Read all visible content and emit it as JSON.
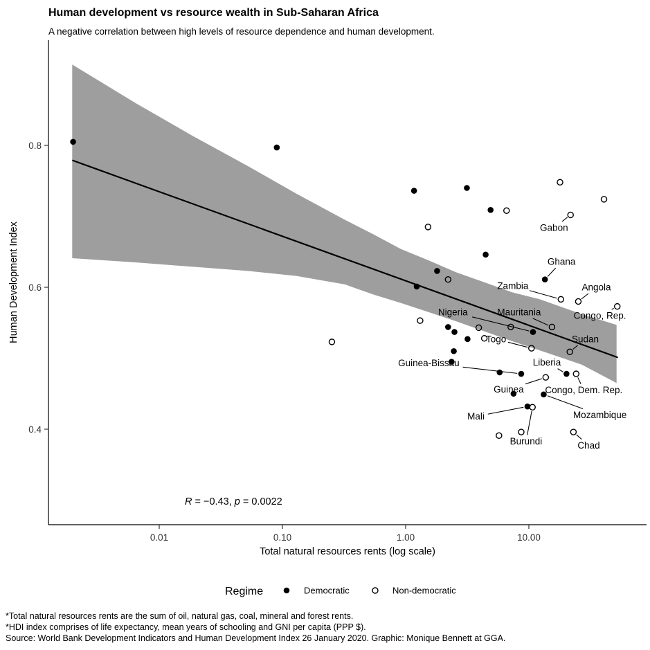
{
  "chart_data": {
    "type": "scatter",
    "title": "Human development vs resource wealth in Sub-Saharan Africa",
    "subtitle": "A negative correlation between high levels of resource dependence and human development.",
    "xlabel": "Total natural resources rents (log scale)",
    "ylabel": "Human Development Index",
    "x_scale": "log10",
    "x_ticks": [
      "0.01",
      "0.10",
      "1.00",
      "10.00"
    ],
    "x_tick_values": [
      0.01,
      0.1,
      1,
      10
    ],
    "y_ticks": [
      "0.8",
      "0.6",
      "0.4"
    ],
    "y_tick_values": [
      0.8,
      0.6,
      0.4
    ],
    "grid": false,
    "annotation": {
      "r_label": "R",
      "r_value": " = −0.43, ",
      "p_label": "p",
      "p_value": " = 0.0022"
    },
    "legend": {
      "title": "Regime",
      "position": "bottom",
      "items": [
        {
          "label": "Democratic",
          "marker": "filled"
        },
        {
          "label": "Non-democratic",
          "marker": "open"
        }
      ]
    },
    "regression": {
      "line": [
        {
          "log_x": -2.706,
          "y": 0.779
        },
        {
          "log_x": 1.723,
          "y": 0.501
        }
      ],
      "band_color": "#9e9e9e",
      "band": [
        {
          "lx": -2.706,
          "hi": 0.914,
          "lo": 0.641
        },
        {
          "lx": -2.186,
          "hi": 0.859,
          "lo": 0.635
        },
        {
          "lx": -1.734,
          "hi": 0.814,
          "lo": 0.629
        },
        {
          "lx": -1.282,
          "hi": 0.771,
          "lo": 0.623
        },
        {
          "lx": -0.887,
          "hi": 0.732,
          "lo": 0.616
        },
        {
          "lx": -0.492,
          "hi": 0.695,
          "lo": 0.604
        },
        {
          "lx": -0.266,
          "hi": 0.675,
          "lo": 0.59
        },
        {
          "lx": -0.04,
          "hi": 0.654,
          "lo": 0.578
        },
        {
          "lx": 0.186,
          "hi": 0.638,
          "lo": 0.565
        },
        {
          "lx": 0.412,
          "hi": 0.621,
          "lo": 0.552
        },
        {
          "lx": 0.638,
          "hi": 0.607,
          "lo": 0.538
        },
        {
          "lx": 0.864,
          "hi": 0.593,
          "lo": 0.524
        },
        {
          "lx": 1.09,
          "hi": 0.583,
          "lo": 0.511
        },
        {
          "lx": 1.429,
          "hi": 0.562,
          "lo": 0.491
        },
        {
          "lx": 1.712,
          "hi": 0.547,
          "lo": 0.465
        }
      ]
    },
    "series": [
      {
        "name": "Democratic",
        "marker": "filled",
        "points": [
          {
            "x": 0.002,
            "y": 0.805
          },
          {
            "x": 0.09,
            "y": 0.797
          },
          {
            "x": 1.17,
            "y": 0.736
          },
          {
            "x": 3.14,
            "y": 0.74
          },
          {
            "x": 4.89,
            "y": 0.709
          },
          {
            "x": 4.46,
            "y": 0.646
          },
          {
            "x": 1.8,
            "y": 0.623
          },
          {
            "x": 1.23,
            "y": 0.601
          },
          {
            "x": 13.5,
            "y": 0.611,
            "label": "Ghana",
            "label_pos": {
              "x": 18.4,
              "y": 0.636
            }
          },
          {
            "x": 2.21,
            "y": 0.544
          },
          {
            "x": 2.49,
            "y": 0.537
          },
          {
            "x": 3.18,
            "y": 0.527
          },
          {
            "x": 2.46,
            "y": 0.51
          },
          {
            "x": 2.36,
            "y": 0.495
          },
          {
            "x": 10.8,
            "y": 0.537,
            "label": "Nigeria",
            "label_pos": {
              "x": 2.42,
              "y": 0.565
            }
          },
          {
            "x": 5.79,
            "y": 0.48
          },
          {
            "x": 8.67,
            "y": 0.478,
            "label": "Guinea-Bissau",
            "label_pos": {
              "x": 1.54,
              "y": 0.493
            }
          },
          {
            "x": 20.2,
            "y": 0.478,
            "label": "Liberia",
            "label_pos": {
              "x": 14.0,
              "y": 0.494
            }
          },
          {
            "x": 7.51,
            "y": 0.45
          },
          {
            "x": 13.2,
            "y": 0.449,
            "label": "Mozambique",
            "label_pos": {
              "x": 37.7,
              "y": 0.42
            }
          },
          {
            "x": 9.74,
            "y": 0.432,
            "label": "Mali",
            "label_pos": {
              "x": 3.72,
              "y": 0.418
            }
          }
        ]
      },
      {
        "name": "Non-democratic",
        "marker": "open",
        "points": [
          {
            "x": 17.9,
            "y": 0.748
          },
          {
            "x": 40.7,
            "y": 0.724
          },
          {
            "x": 6.59,
            "y": 0.708
          },
          {
            "x": 21.8,
            "y": 0.702,
            "label": "Gabon",
            "label_pos": {
              "x": 16.0,
              "y": 0.684
            }
          },
          {
            "x": 1.52,
            "y": 0.685
          },
          {
            "x": 2.21,
            "y": 0.611
          },
          {
            "x": 18.2,
            "y": 0.583,
            "label": "Zambia",
            "label_pos": {
              "x": 7.41,
              "y": 0.602
            }
          },
          {
            "x": 25.2,
            "y": 0.58,
            "label": "Angola",
            "label_pos": {
              "x": 35.3,
              "y": 0.6
            }
          },
          {
            "x": 52.2,
            "y": 0.573,
            "label": "Congo, Rep.",
            "label_pos": {
              "x": 37.7,
              "y": 0.56
            }
          },
          {
            "x": 1.31,
            "y": 0.553
          },
          {
            "x": 3.92,
            "y": 0.543
          },
          {
            "x": 7.13,
            "y": 0.544
          },
          {
            "x": 15.4,
            "y": 0.544,
            "label": "Mauritania",
            "label_pos": {
              "x": 8.33,
              "y": 0.565
            }
          },
          {
            "x": 4.35,
            "y": 0.528
          },
          {
            "x": 10.5,
            "y": 0.514,
            "label": "Togo",
            "label_pos": {
              "x": 5.42,
              "y": 0.527
            }
          },
          {
            "x": 21.5,
            "y": 0.509,
            "label": "Sudan",
            "label_pos": {
              "x": 28.7,
              "y": 0.527
            }
          },
          {
            "x": 0.252,
            "y": 0.523
          },
          {
            "x": 13.7,
            "y": 0.473,
            "label": "Guinea",
            "label_pos": {
              "x": 6.86,
              "y": 0.456
            }
          },
          {
            "x": 24.2,
            "y": 0.478,
            "label": "Congo, Dem. Rep.",
            "label_pos": {
              "x": 27.9,
              "y": 0.455
            }
          },
          {
            "x": 10.7,
            "y": 0.431,
            "label": "Burundi",
            "label_pos": {
              "x": 9.49,
              "y": 0.383
            }
          },
          {
            "x": 8.67,
            "y": 0.396
          },
          {
            "x": 5.72,
            "y": 0.391
          },
          {
            "x": 23.0,
            "y": 0.396,
            "label": "Chad",
            "label_pos": {
              "x": 30.6,
              "y": 0.377
            }
          }
        ]
      }
    ],
    "footnotes": [
      "*Total natural resources rents are the sum of oil, natural gas, coal, mineral and forest rents.",
      "*HDI index comprises of life expectancy, mean years of schooling and GNI per capita (PPP $).",
      "Source: World Bank Development Indicators and Human Development Index 26 January 2020. Graphic: Monique Bennett at GGA."
    ]
  }
}
